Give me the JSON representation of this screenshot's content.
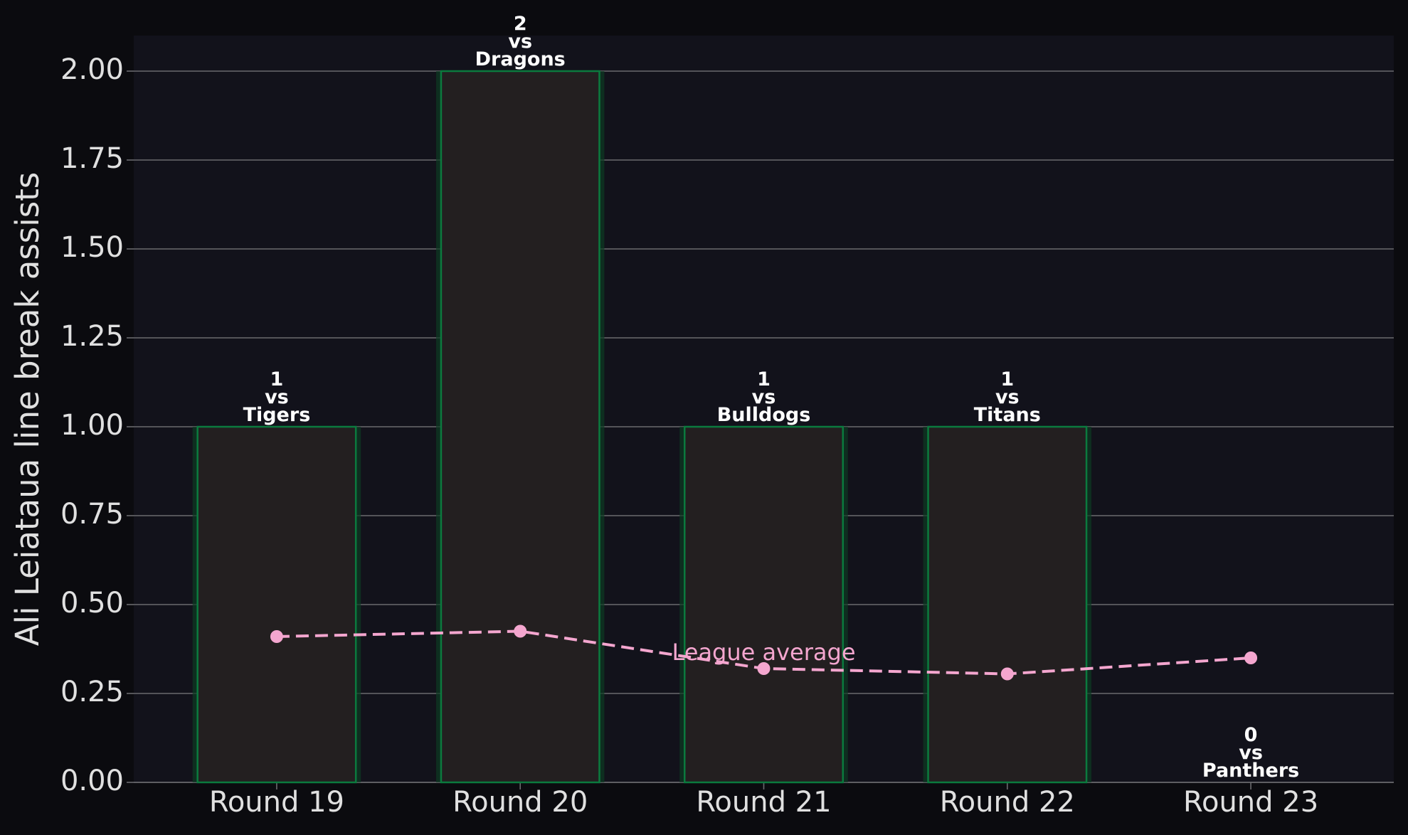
{
  "chart_data": {
    "type": "bar",
    "ylabel": "Ali Leiataua line break assists",
    "categories": [
      "Round 19",
      "Round 20",
      "Round 21",
      "Round 22",
      "Round 23"
    ],
    "values": [
      1,
      2,
      1,
      1,
      0
    ],
    "value_labels": [
      [
        "1",
        "vs",
        "Tigers"
      ],
      [
        "2",
        "vs",
        "Dragons"
      ],
      [
        "1",
        "vs",
        "Bulldogs"
      ],
      [
        "1",
        "vs",
        "Titans"
      ],
      [
        "0",
        "vs",
        "Panthers"
      ]
    ],
    "color": "#231f20",
    "edgecolor": "#0b7a3e",
    "line": {
      "name": "League average",
      "values": [
        0.41,
        0.425,
        0.32,
        0.305,
        0.35
      ],
      "color": "#f4a6cf"
    },
    "ylim": [
      0,
      2.1
    ],
    "yticks": [
      {
        "value": 0,
        "label": "0.00"
      },
      {
        "value": 0.25,
        "label": "0.25"
      },
      {
        "value": 0.5,
        "label": "0.50"
      },
      {
        "value": 0.75,
        "label": "0.75"
      },
      {
        "value": 1,
        "label": "1.00"
      },
      {
        "value": 1.25,
        "label": "1.25"
      },
      {
        "value": 1.5,
        "label": "1.50"
      },
      {
        "value": 1.75,
        "label": "1.75"
      },
      {
        "value": 2,
        "label": "2.00"
      }
    ],
    "grid": true
  }
}
